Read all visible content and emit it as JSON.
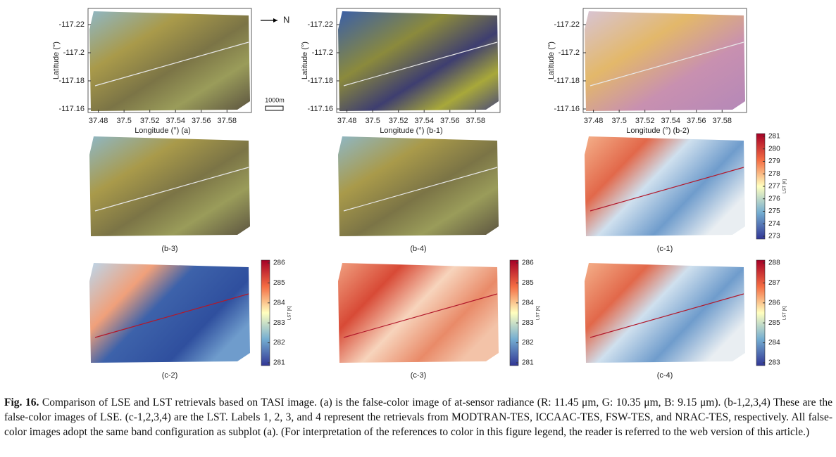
{
  "annotations": {
    "north": "N",
    "scale": "1000m"
  },
  "panels": [
    {
      "label": "Longitude (°) (a)",
      "ylabel": "Latitude (°)",
      "xlim": [
        37.472,
        37.599
      ],
      "ylim": [
        -117.2315,
        -117.1575
      ],
      "xticks": [
        37.48,
        37.5,
        37.52,
        37.54,
        37.56,
        37.58
      ],
      "yticks": [
        -117.22,
        -117.2,
        -117.18,
        -117.16
      ]
    },
    {
      "label": "Longitude (°) (b-1)",
      "ylabel": "Latitude (°)",
      "xlim": [
        37.472,
        37.599
      ],
      "ylim": [
        -117.2315,
        -117.1575
      ],
      "xticks": [
        37.48,
        37.5,
        37.52,
        37.54,
        37.56,
        37.58
      ],
      "yticks": [
        -117.22,
        -117.2,
        -117.18,
        -117.16
      ]
    },
    {
      "label": "Longitude (°) (b-2)",
      "ylabel": "Latitude (°)",
      "xlim": [
        37.472,
        37.599
      ],
      "ylim": [
        -117.2315,
        -117.1575
      ],
      "xticks": [
        37.48,
        37.5,
        37.52,
        37.54,
        37.56,
        37.58
      ],
      "yticks": [
        -117.22,
        -117.2,
        -117.18,
        -117.16
      ]
    },
    {
      "label": "(b-3)"
    },
    {
      "label": "(b-4)"
    },
    {
      "label": "(c-1)",
      "colorbar": {
        "label": "LST [K]",
        "ticks": [
          281,
          280,
          279,
          278,
          277,
          276,
          275,
          274,
          273
        ]
      }
    },
    {
      "label": "(c-2)",
      "colorbar": {
        "label": "LST [K]",
        "ticks": [
          286,
          285,
          284,
          283,
          282,
          281
        ]
      }
    },
    {
      "label": "(c-3)",
      "colorbar": {
        "label": "LST [K]",
        "ticks": [
          286,
          285,
          284,
          283,
          282,
          281
        ]
      }
    },
    {
      "label": "(c-4)",
      "colorbar": {
        "label": "LST [K]",
        "ticks": [
          288,
          287,
          286,
          285,
          284,
          283
        ]
      }
    }
  ],
  "caption": {
    "label": "Fig. 16.",
    "text": "Comparison of LSE and LST retrievals based on TASI image. (a) is the false-color image of at-sensor radiance (R: 11.45 μm, G: 10.35 μm, B: 9.15 μm). (b-1,2,3,4) These are the false-color images of LSE. (c-1,2,3,4) are the LST. Labels 1, 2, 3, and 4 represent the retrievals from MODTRAN-TES, ICCAAC-TES, FSW-TES, and NRAC-TES, respectively. All false-color images adopt the same band configuration as subplot (a). (For interpretation of the references to color in this figure legend, the reader is referred to the web version of this article.)"
  }
}
